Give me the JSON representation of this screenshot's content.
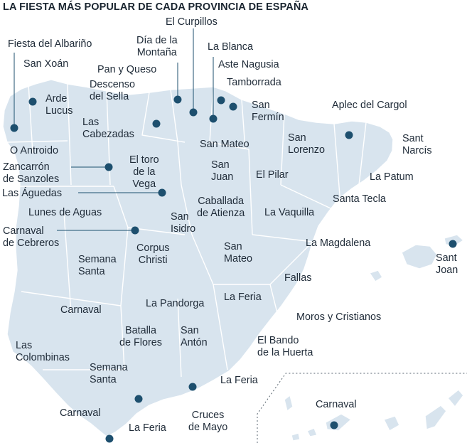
{
  "title": "LA FIESTA MÁS POPULAR DE CADA PROVINCIA DE ESPAÑA",
  "colors": {
    "land": "#d8e4ee",
    "marker": "#1d4f6e",
    "text": "#1f2b38"
  },
  "labels": {
    "el_curpillos": "El Curpillos",
    "fiesta_albarino": "Fiesta del Albariño",
    "dia_montana": "Día de la\nMontaña",
    "la_blanca": "La Blanca",
    "san_xoan": "San Xoán",
    "pan_queso": "Pan y Queso",
    "aste_nagusia": "Aste Nagusia",
    "tamborrada": "Tamborrada",
    "descenso_sella": "Descenso\ndel Sella",
    "arde_lucus": "Arde\nLucus",
    "san_fermin": "San\nFermín",
    "aplec_cargol": "Aplec del Cargol",
    "las_cabezadas": "Las\nCabezadas",
    "san_lorenzo": "San\nLorenzo",
    "sant_narcis": "Sant\nNarcís",
    "san_mateo_soria": "San Mateo",
    "o_antroido": "O Antroido",
    "zancarron": "Zancarrón\nde Sanzoles",
    "toro_vega": "El toro\nde la\nVega",
    "san_juan_soria": "San\nJuan",
    "el_pilar": "El Pilar",
    "la_patum": "La Patum",
    "las_aguedas": "Las Águedas",
    "santa_tecla": "Santa Tecla",
    "lunes_aguas": "Lunes de Aguas",
    "caballada": "Caballada\nde Atienza",
    "la_vaquilla": "La Vaquilla",
    "san_isidro": "San\nIsidro",
    "carnaval_cebreros": "Carnaval\nde Cebreros",
    "la_magdalena": "La Magdalena",
    "corpus": "Corpus\nChristi",
    "san_mateo_cuenca": "San\nMateo",
    "sant_joan": "Sant\nJoan",
    "semana_santa_caceres": "Semana\nSanta",
    "fallas": "Fallas",
    "carnaval_badajoz": "Carnaval",
    "la_pandorga": "La Pandorga",
    "la_feria_albacete": "La Feria",
    "moros_cristianos": "Moros y Cristianos",
    "batalla_flores": "Batalla\nde Flores",
    "san_anton": "San\nAntón",
    "el_bando_huerta": "El Bando\nde la Huerta",
    "las_colombinas": "Las\nColombinas",
    "semana_santa_sevilla": "Semana\nSanta",
    "la_feria_almeria": "La Feria",
    "carnaval_canarias": "Carnaval",
    "carnaval_cadiz": "Carnaval",
    "cruces_mayo": "Cruces\nde Mayo",
    "la_feria_malaga": "La Feria"
  }
}
